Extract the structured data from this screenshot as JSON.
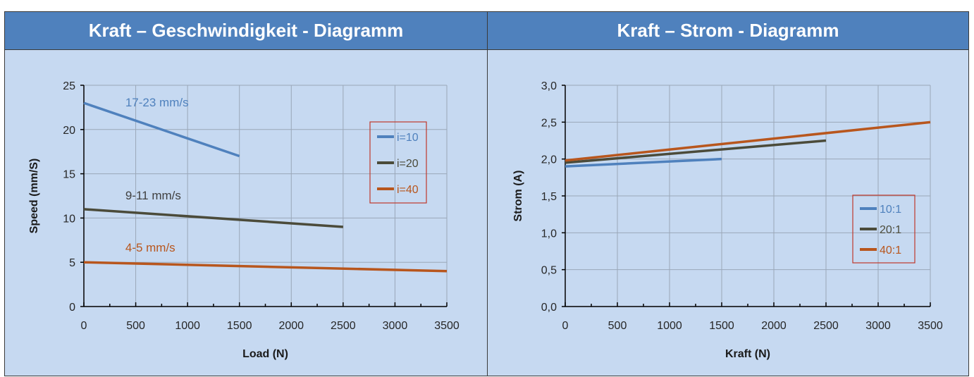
{
  "panels": [
    {
      "title": "Kraft – Geschwindigkeit - Diagramm"
    },
    {
      "title": "Kraft – Strom - Diagramm"
    }
  ],
  "colors": {
    "header_bg": "#4f81bd",
    "panel_bg": "#c6d9f1",
    "blue": "#4f81bd",
    "dark": "#4b4b3a",
    "orange": "#b8561d",
    "legend_border": "#c0392b"
  },
  "chart_data": [
    {
      "type": "line",
      "title": "",
      "xlabel": "Load (N)",
      "ylabel": "Speed (mm/S)",
      "xlim": [
        0,
        3500
      ],
      "ylim": [
        0,
        25
      ],
      "xticks": [
        "0",
        "500",
        "1000",
        "1500",
        "2000",
        "2500",
        "3000",
        "3500"
      ],
      "yticks": [
        "0",
        "5",
        "10",
        "15",
        "20",
        "25"
      ],
      "grid": true,
      "legend_position": "right",
      "series": [
        {
          "name": "i=10",
          "color": "#4f81bd",
          "x": [
            0,
            1500
          ],
          "y": [
            23,
            17
          ]
        },
        {
          "name": "i=20",
          "color": "#4b4b3a",
          "x": [
            0,
            2500
          ],
          "y": [
            11,
            9
          ]
        },
        {
          "name": "i=40",
          "color": "#b8561d",
          "x": [
            0,
            3500
          ],
          "y": [
            5,
            4
          ]
        }
      ],
      "annotations": [
        {
          "text": "17-23 mm/s",
          "x": 400,
          "y": 22.6,
          "color": "#4f81bd"
        },
        {
          "text": "9-11 mm/s",
          "x": 400,
          "y": 12.1,
          "color": "#404040"
        },
        {
          "text": "4-5 mm/s",
          "x": 400,
          "y": 6.2,
          "color": "#b8561d"
        }
      ]
    },
    {
      "type": "line",
      "title": "",
      "xlabel": "Kraft (N)",
      "ylabel": "Strom (A)",
      "xlim": [
        0,
        3500
      ],
      "ylim": [
        0,
        3.0
      ],
      "xticks": [
        "0",
        "500",
        "1000",
        "1500",
        "2000",
        "2500",
        "3000",
        "3500"
      ],
      "yticks": [
        "0,0",
        "0,5",
        "1,0",
        "1,5",
        "2,0",
        "2,5",
        "3,0"
      ],
      "grid": true,
      "legend_position": "bottom-right",
      "series": [
        {
          "name": "10:1",
          "color": "#4f81bd",
          "x": [
            0,
            1500
          ],
          "y": [
            1.9,
            2.0
          ]
        },
        {
          "name": "20:1",
          "color": "#4b4b3a",
          "x": [
            0,
            2500
          ],
          "y": [
            1.95,
            2.25
          ]
        },
        {
          "name": "40:1",
          "color": "#b8561d",
          "x": [
            0,
            3500
          ],
          "y": [
            1.98,
            2.5
          ]
        }
      ],
      "annotations": []
    }
  ]
}
